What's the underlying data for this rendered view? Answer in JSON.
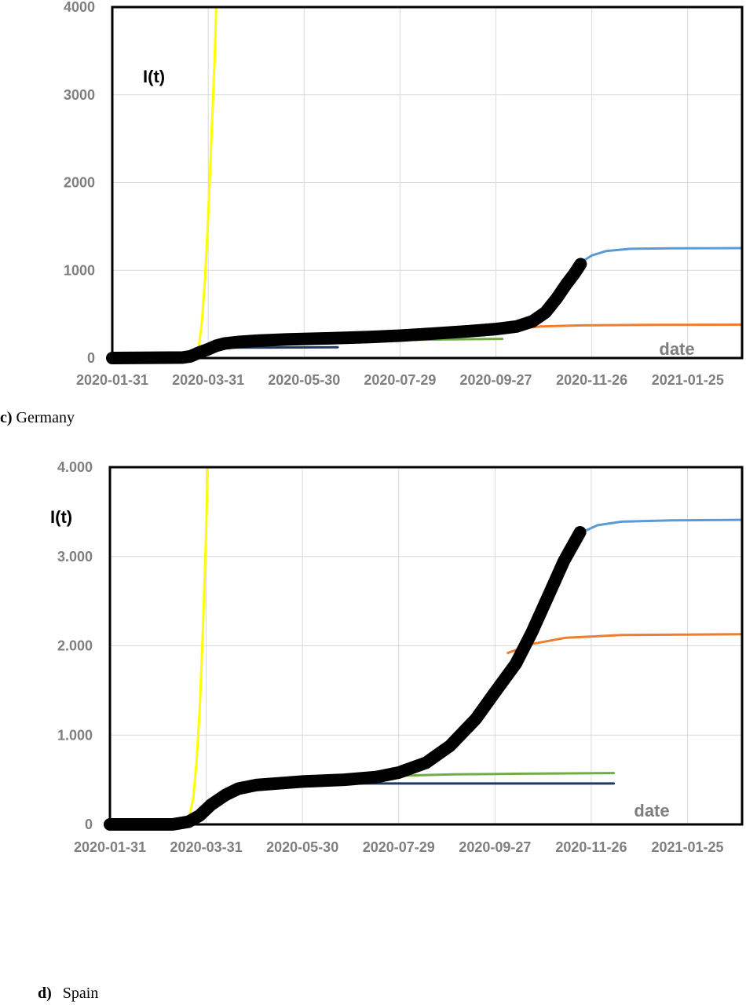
{
  "chart_data": [
    {
      "type": "line",
      "panel": "c",
      "caption_letter": "c)",
      "caption_text": " Germany",
      "ylabel": "I(t)",
      "xlabel": "date",
      "y_ticks": [
        0,
        1000,
        2000,
        3000,
        4000
      ],
      "y_tick_labels": [
        "0",
        "1000",
        "2000",
        "3000",
        "4000"
      ],
      "ylim": [
        0,
        4000
      ],
      "x_ticks": [
        "2020-01-31",
        "2020-03-31",
        "2020-05-30",
        "2020-07-29",
        "2020-09-27",
        "2020-11-26",
        "2021-01-25"
      ],
      "xlim": [
        "2020-01-31",
        "2021-02-28"
      ],
      "grid": true,
      "series": [
        {
          "color": "#4f81bd",
          "lw": 1.5,
          "points": [
            [
              "2020-01-31",
              0
            ],
            [
              "2020-01-31",
              4000
            ]
          ]
        },
        {
          "color": "#ffff00",
          "lw": 3,
          "points": [
            [
              "2020-03-25",
              100
            ],
            [
              "2020-03-27",
              400
            ],
            [
              "2020-03-29",
              900
            ],
            [
              "2020-03-31",
              1600
            ],
            [
              "2020-04-02",
              2500
            ],
            [
              "2020-04-04",
              3400
            ],
            [
              "2020-04-05",
              4000
            ]
          ]
        },
        {
          "color": "#203864",
          "lw": 3,
          "points": [
            [
              "2020-03-27",
              110
            ],
            [
              "2020-04-10",
              118
            ],
            [
              "2020-05-10",
              120
            ],
            [
              "2020-06-20",
              123
            ]
          ]
        },
        {
          "color": "#70ad47",
          "lw": 3,
          "points": [
            [
              "2020-07-29",
              205
            ],
            [
              "2020-08-28",
              212
            ],
            [
              "2020-10-01",
              218
            ]
          ]
        },
        {
          "color": "#ed7d31",
          "lw": 3,
          "points": [
            [
              "2020-10-14",
              340
            ],
            [
              "2020-10-25",
              360
            ],
            [
              "2020-11-20",
              372
            ],
            [
              "2020-12-31",
              378
            ],
            [
              "2021-02-28",
              380
            ]
          ]
        },
        {
          "color": "#5b9bd5",
          "lw": 3,
          "points": [
            [
              "2020-11-20",
              1100
            ],
            [
              "2020-11-26",
              1170
            ],
            [
              "2020-12-05",
              1220
            ],
            [
              "2020-12-20",
              1245
            ],
            [
              "2021-01-15",
              1250
            ],
            [
              "2021-02-28",
              1253
            ]
          ]
        },
        {
          "color": "#000000",
          "lw": 16,
          "points": [
            [
              "2020-01-31",
              0
            ],
            [
              "2020-03-15",
              5
            ],
            [
              "2020-03-20",
              20
            ],
            [
              "2020-03-25",
              60
            ],
            [
              "2020-03-31",
              100
            ],
            [
              "2020-04-05",
              140
            ],
            [
              "2020-04-10",
              165
            ],
            [
              "2020-04-20",
              185
            ],
            [
              "2020-05-01",
              198
            ],
            [
              "2020-05-20",
              212
            ],
            [
              "2020-06-15",
              225
            ],
            [
              "2020-07-10",
              240
            ],
            [
              "2020-07-29",
              255
            ],
            [
              "2020-08-20",
              280
            ],
            [
              "2020-09-10",
              305
            ],
            [
              "2020-09-27",
              330
            ],
            [
              "2020-10-10",
              360
            ],
            [
              "2020-10-20",
              420
            ],
            [
              "2020-10-28",
              520
            ],
            [
              "2020-11-04",
              680
            ],
            [
              "2020-11-10",
              840
            ],
            [
              "2020-11-15",
              960
            ],
            [
              "2020-11-19",
              1070
            ]
          ]
        }
      ]
    },
    {
      "type": "line",
      "panel": "d",
      "caption_letter": "d)",
      "caption_text": "Spain",
      "ylabel": "I(t)",
      "xlabel": "date",
      "y_ticks": [
        0,
        1000,
        2000,
        3000,
        4000
      ],
      "y_tick_labels": [
        "0",
        "1.000",
        "2.000",
        "3.000",
        "4.000"
      ],
      "ylim": [
        0,
        4000
      ],
      "x_ticks": [
        "2020-01-31",
        "2020-03-31",
        "2020-05-30",
        "2020-07-29",
        "2020-09-27",
        "2020-11-26",
        "2021-01-25"
      ],
      "xlim": [
        "2020-01-31",
        "2021-02-28"
      ],
      "grid": true,
      "series": [
        {
          "color": "#ffff00",
          "lw": 3,
          "points": [
            [
              "2020-03-20",
              50
            ],
            [
              "2020-03-23",
              300
            ],
            [
              "2020-03-25",
              700
            ],
            [
              "2020-03-27",
              1300
            ],
            [
              "2020-03-29",
              2200
            ],
            [
              "2020-03-31",
              3300
            ],
            [
              "2020-04-01",
              4000
            ]
          ]
        },
        {
          "color": "#203864",
          "lw": 3,
          "points": [
            [
              "2020-05-15",
              455
            ],
            [
              "2020-07-01",
              458
            ],
            [
              "2020-09-01",
              458
            ],
            [
              "2020-12-10",
              458
            ]
          ]
        },
        {
          "color": "#70ad47",
          "lw": 3,
          "points": [
            [
              "2020-07-29",
              545
            ],
            [
              "2020-09-01",
              560
            ],
            [
              "2020-10-15",
              568
            ],
            [
              "2020-12-10",
              575
            ]
          ]
        },
        {
          "color": "#ed7d31",
          "lw": 3,
          "points": [
            [
              "2020-10-05",
              1920
            ],
            [
              "2020-10-20",
              2020
            ],
            [
              "2020-11-10",
              2090
            ],
            [
              "2020-12-15",
              2120
            ],
            [
              "2021-02-28",
              2130
            ]
          ]
        },
        {
          "color": "#5b9bd5",
          "lw": 3,
          "points": [
            [
              "2020-11-20",
              3270
            ],
            [
              "2020-11-30",
              3350
            ],
            [
              "2020-12-15",
              3390
            ],
            [
              "2021-01-15",
              3405
            ],
            [
              "2021-02-28",
              3410
            ]
          ]
        },
        {
          "color": "#000000",
          "lw": 16,
          "points": [
            [
              "2020-01-31",
              0
            ],
            [
              "2020-03-10",
              0
            ],
            [
              "2020-03-20",
              30
            ],
            [
              "2020-03-27",
              100
            ],
            [
              "2020-04-03",
              220
            ],
            [
              "2020-04-12",
              330
            ],
            [
              "2020-04-20",
              400
            ],
            [
              "2020-05-01",
              440
            ],
            [
              "2020-05-30",
              480
            ],
            [
              "2020-06-25",
              500
            ],
            [
              "2020-07-15",
              530
            ],
            [
              "2020-07-29",
              580
            ],
            [
              "2020-08-15",
              690
            ],
            [
              "2020-08-30",
              880
            ],
            [
              "2020-09-15",
              1180
            ],
            [
              "2020-09-27",
              1480
            ],
            [
              "2020-10-10",
              1800
            ],
            [
              "2020-10-20",
              2150
            ],
            [
              "2020-10-30",
              2550
            ],
            [
              "2020-11-09",
              2950
            ],
            [
              "2020-11-19",
              3270
            ]
          ]
        }
      ]
    }
  ]
}
